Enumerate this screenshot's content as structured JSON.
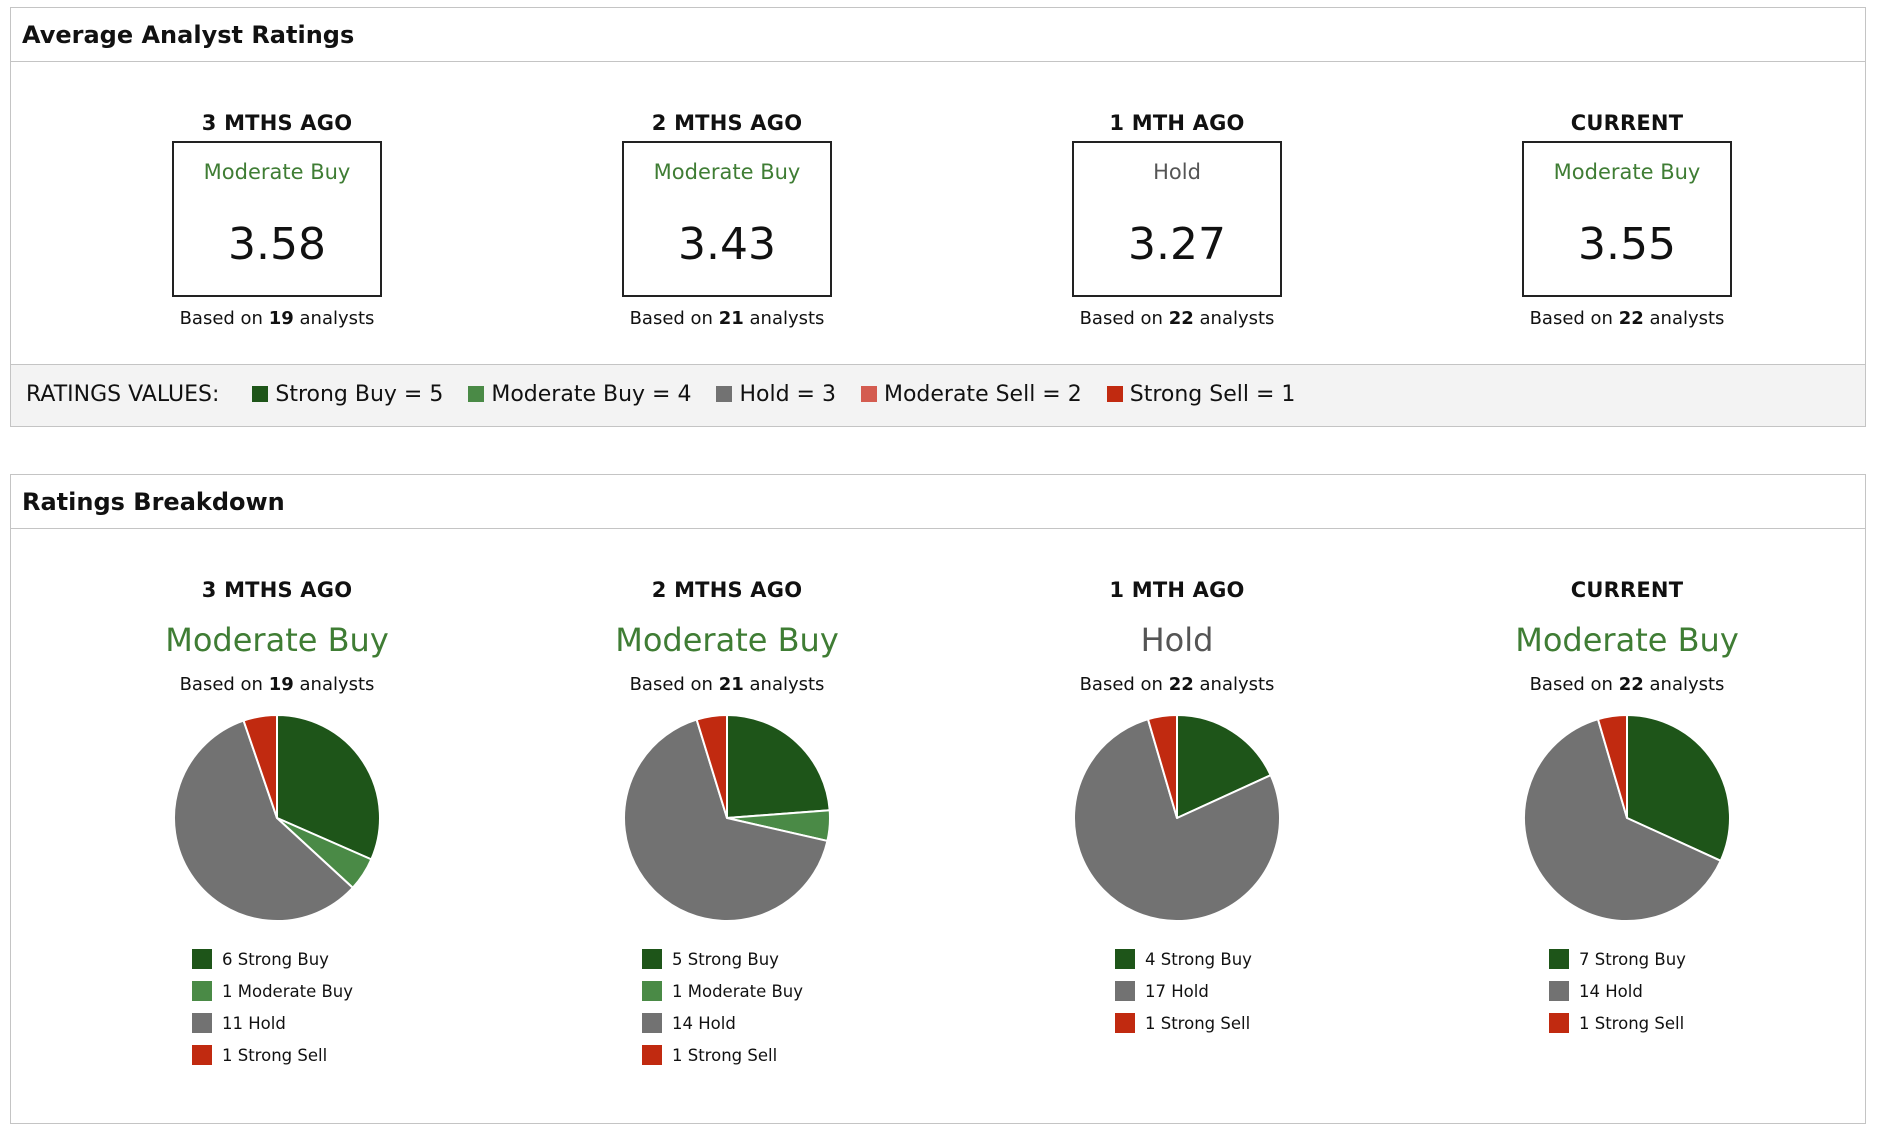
{
  "colors": {
    "strong_buy": "#1e5519",
    "moderate_buy": "#4a8a46",
    "hold": "#727272",
    "moderate_sell": "#d45c50",
    "strong_sell": "#c12a10",
    "label_buy": "#3f7d34",
    "label_hold": "#555555"
  },
  "avg_panel": {
    "title": "Average Analyst Ratings",
    "columns": [
      {
        "period": "3 MTHS AGO",
        "label": "Moderate Buy",
        "label_type": "buy",
        "score": "3.58",
        "based_pre": "Based on",
        "based_count": "19",
        "based_post": "analysts"
      },
      {
        "period": "2 MTHS AGO",
        "label": "Moderate Buy",
        "label_type": "buy",
        "score": "3.43",
        "based_pre": "Based on",
        "based_count": "21",
        "based_post": "analysts"
      },
      {
        "period": "1 MTH AGO",
        "label": "Hold",
        "label_type": "hold",
        "score": "3.27",
        "based_pre": "Based on",
        "based_count": "22",
        "based_post": "analysts"
      },
      {
        "period": "CURRENT",
        "label": "Moderate Buy",
        "label_type": "buy",
        "score": "3.55",
        "based_pre": "Based on",
        "based_count": "22",
        "based_post": "analysts"
      }
    ],
    "legend": {
      "title": "RATINGS VALUES:",
      "items": [
        {
          "text": "Strong Buy = 5",
          "color_key": "strong_buy"
        },
        {
          "text": "Moderate Buy = 4",
          "color_key": "moderate_buy"
        },
        {
          "text": "Hold = 3",
          "color_key": "hold"
        },
        {
          "text": "Moderate Sell = 2",
          "color_key": "moderate_sell"
        },
        {
          "text": "Strong Sell = 1",
          "color_key": "strong_sell"
        }
      ]
    }
  },
  "breakdown_panel": {
    "title": "Ratings Breakdown"
  },
  "chart_data": [
    {
      "type": "pie",
      "period": "3 MTHS AGO",
      "label": "Moderate Buy",
      "label_type": "buy",
      "based_pre": "Based on",
      "based_count": "19",
      "based_post": "analysts",
      "slices": [
        {
          "name": "Strong Buy",
          "value": 6,
          "color_key": "strong_buy",
          "legend": "6 Strong Buy"
        },
        {
          "name": "Moderate Buy",
          "value": 1,
          "color_key": "moderate_buy",
          "legend": "1 Moderate Buy"
        },
        {
          "name": "Hold",
          "value": 11,
          "color_key": "hold",
          "legend": "11 Hold"
        },
        {
          "name": "Strong Sell",
          "value": 1,
          "color_key": "strong_sell",
          "legend": "1 Strong Sell"
        }
      ]
    },
    {
      "type": "pie",
      "period": "2 MTHS AGO",
      "label": "Moderate Buy",
      "label_type": "buy",
      "based_pre": "Based on",
      "based_count": "21",
      "based_post": "analysts",
      "slices": [
        {
          "name": "Strong Buy",
          "value": 5,
          "color_key": "strong_buy",
          "legend": "5 Strong Buy"
        },
        {
          "name": "Moderate Buy",
          "value": 1,
          "color_key": "moderate_buy",
          "legend": "1 Moderate Buy"
        },
        {
          "name": "Hold",
          "value": 14,
          "color_key": "hold",
          "legend": "14 Hold"
        },
        {
          "name": "Strong Sell",
          "value": 1,
          "color_key": "strong_sell",
          "legend": "1 Strong Sell"
        }
      ]
    },
    {
      "type": "pie",
      "period": "1 MTH AGO",
      "label": "Hold",
      "label_type": "hold",
      "based_pre": "Based on",
      "based_count": "22",
      "based_post": "analysts",
      "slices": [
        {
          "name": "Strong Buy",
          "value": 4,
          "color_key": "strong_buy",
          "legend": "4 Strong Buy"
        },
        {
          "name": "Hold",
          "value": 17,
          "color_key": "hold",
          "legend": "17 Hold"
        },
        {
          "name": "Strong Sell",
          "value": 1,
          "color_key": "strong_sell",
          "legend": "1 Strong Sell"
        }
      ]
    },
    {
      "type": "pie",
      "period": "CURRENT",
      "label": "Moderate Buy",
      "label_type": "buy",
      "based_pre": "Based on",
      "based_count": "22",
      "based_post": "analysts",
      "slices": [
        {
          "name": "Strong Buy",
          "value": 7,
          "color_key": "strong_buy",
          "legend": "7 Strong Buy"
        },
        {
          "name": "Hold",
          "value": 14,
          "color_key": "hold",
          "legend": "14 Hold"
        },
        {
          "name": "Strong Sell",
          "value": 1,
          "color_key": "strong_sell",
          "legend": "1 Strong Sell"
        }
      ]
    }
  ]
}
